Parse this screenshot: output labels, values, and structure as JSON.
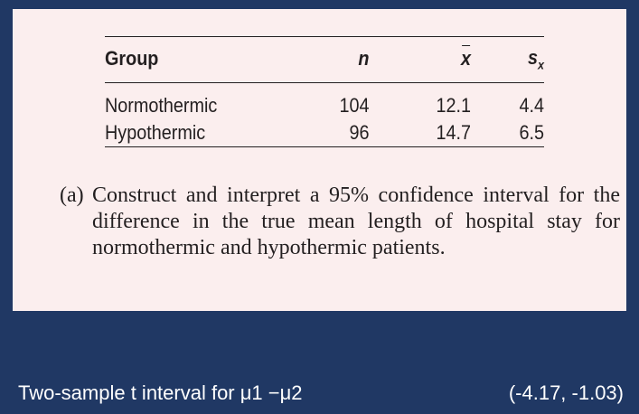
{
  "table": {
    "headers": {
      "group": "Group",
      "n": "n",
      "xbar": "x",
      "sx": "s",
      "sx_sub": "x"
    },
    "rows": [
      {
        "group": "Normothermic",
        "n": "104",
        "xbar": "12.1",
        "sx": "4.4"
      },
      {
        "group": "Hypothermic",
        "n": "96",
        "xbar": "14.7",
        "sx": "6.5"
      }
    ]
  },
  "question": {
    "label": "(a)",
    "text": "Construct and interpret a 95% confidence interval for the difference in the true mean length of hospital stay for normothermic and hypothermic patients."
  },
  "answer": {
    "label": "Two-sample t interval for μ1 −μ2",
    "result": "(-4.17, -1.03)"
  },
  "colors": {
    "background": "#203864",
    "panel": "#fbeeee",
    "text": "#231f20"
  }
}
